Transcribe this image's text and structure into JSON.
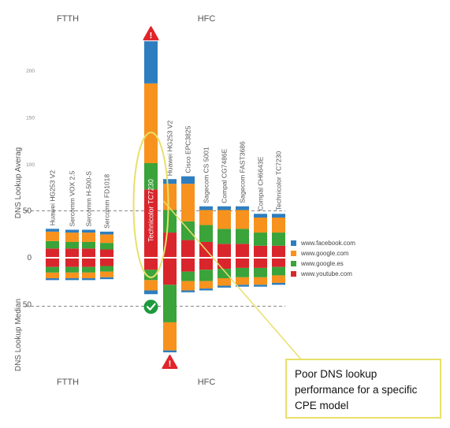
{
  "chart_data": {
    "type": "bar",
    "layout": "diverging stacked bar",
    "groups": [
      "FTTH",
      "HFC"
    ],
    "categories": [
      "Huawei HG253 V2",
      "Sercomm VOX 2.5",
      "Sercomm H-500-S",
      "Sercomm FD1018",
      "Technicolor TC7230",
      "Huawei HG253 V2",
      "Cisco EPC3825",
      "Sagecom CS 5001",
      "Compal CG7486E",
      "Sagecom FAST3686",
      "Compal CH6643E",
      "Technicolor TC7230"
    ],
    "category_groups": [
      "FTTH",
      "FTTH",
      "FTTH",
      "FTTH",
      "HFC",
      "HFC",
      "HFC",
      "HFC",
      "HFC",
      "HFC",
      "HFC",
      "HFC"
    ],
    "ylabel_top": "DNS Lookup Averag",
    "ylabel_bottom": "DNS Lookup Median",
    "yticks_top": [
      "200",
      "150",
      "100",
      "50",
      "0"
    ],
    "yticks_bottom": [
      "50"
    ],
    "ylim_top": [
      0,
      240
    ],
    "ylim_bottom": [
      0,
      100
    ],
    "threshold": 50,
    "series": [
      {
        "name": "www.youtube.com",
        "color": "#d9262c",
        "average": [
          9,
          9,
          9,
          8,
          72,
          26,
          18,
          16,
          14,
          14,
          12,
          12
        ],
        "median": [
          9,
          9,
          9,
          8,
          12,
          28,
          14,
          12,
          11,
          10,
          10,
          9
        ]
      },
      {
        "name": "www.google.es",
        "color": "#3aa33a",
        "average": [
          8,
          7,
          7,
          7,
          28,
          24,
          20,
          18,
          16,
          16,
          14,
          14
        ],
        "median": [
          6,
          6,
          6,
          6,
          11,
          40,
          10,
          12,
          10,
          10,
          10,
          9
        ]
      },
      {
        "name": "www.google.com",
        "color": "#f7921e",
        "average": [
          10,
          10,
          10,
          9,
          85,
          28,
          40,
          16,
          20,
          20,
          16,
          16
        ],
        "median": [
          6,
          6,
          6,
          6,
          11,
          30,
          10,
          8,
          8,
          8,
          8,
          8
        ]
      },
      {
        "name": "www.facebook.com",
        "color": "#2e7ebf",
        "average": [
          3,
          3,
          3,
          3,
          45,
          5,
          8,
          4,
          4,
          4,
          4,
          4
        ],
        "median": [
          2,
          2,
          2,
          2,
          4,
          2,
          2,
          2,
          2,
          2,
          2,
          2
        ]
      }
    ],
    "legend": [
      "www.facebook.com",
      "www.google.com",
      "www.google.es",
      "www.youtube.com"
    ],
    "legend_colors": [
      "#2e7ebf",
      "#f7921e",
      "#3aa33a",
      "#d9262c"
    ],
    "legend_position": "right",
    "annotations": {
      "warning_icon": "warning-triangle-icon",
      "ok_icon": "checkmark-circle-icon",
      "callout": "Poor DNS lookup performance for a specific CPE model"
    }
  }
}
